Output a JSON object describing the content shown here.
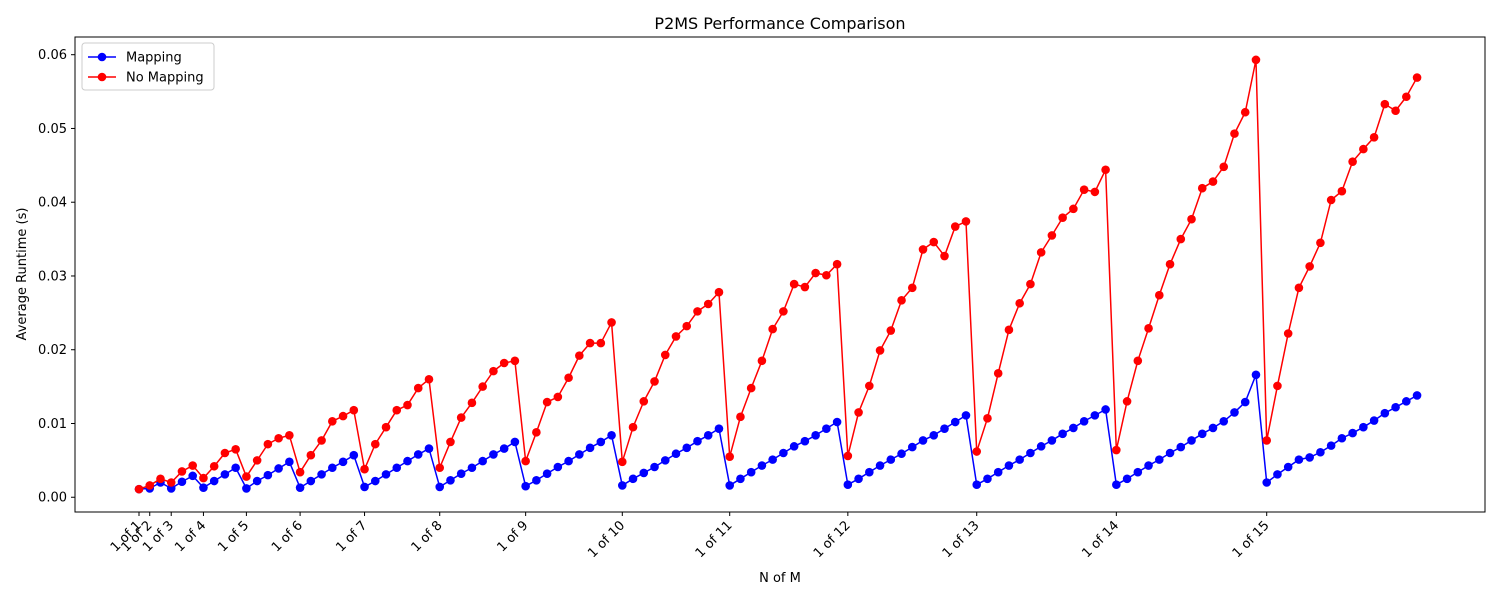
{
  "chart_data": {
    "type": "line",
    "title": "P2MS Performance Comparison",
    "xlabel": "N of M",
    "ylabel": "Average Runtime (s)",
    "ylim": [
      -0.002,
      0.0624
    ],
    "yticks": [
      0.0,
      0.01,
      0.02,
      0.03,
      0.04,
      0.05,
      0.06
    ],
    "ytick_labels": [
      "0.00",
      "0.01",
      "0.02",
      "0.03",
      "0.04",
      "0.05",
      "0.06"
    ],
    "xtick_labels": [
      "1 of 1",
      "1 of 2",
      "1 of 3",
      "1 of 4",
      "1 of 5",
      "1 of 6",
      "1 of 7",
      "1 of 8",
      "1 of 9",
      "1 of 10",
      "1 of 11",
      "1 of 12",
      "1 of 13",
      "1 of 14",
      "1 of 15"
    ],
    "grid": false,
    "legend_position": "top-left",
    "series": [
      {
        "name": "Mapping",
        "color": "#0000ff",
        "values": [
          0.0011,
          0.0012,
          0.002,
          0.0012,
          0.0021,
          0.0029,
          0.0013,
          0.0022,
          0.0031,
          0.004,
          0.0012,
          0.0022,
          0.003,
          0.0039,
          0.0048,
          0.0013,
          0.0022,
          0.0031,
          0.004,
          0.0048,
          0.0057,
          0.0014,
          0.0022,
          0.0031,
          0.004,
          0.0049,
          0.0058,
          0.0066,
          0.0014,
          0.0023,
          0.0032,
          0.004,
          0.0049,
          0.0058,
          0.0066,
          0.0075,
          0.0015,
          0.0023,
          0.0032,
          0.0041,
          0.0049,
          0.0058,
          0.0067,
          0.0075,
          0.0084,
          0.0016,
          0.0025,
          0.0033,
          0.0041,
          0.005,
          0.0059,
          0.0067,
          0.0076,
          0.0084,
          0.0093,
          0.0016,
          0.0025,
          0.0034,
          0.0043,
          0.0051,
          0.006,
          0.0069,
          0.0076,
          0.0084,
          0.0093,
          0.0102,
          0.0017,
          0.0025,
          0.0034,
          0.0043,
          0.0051,
          0.0059,
          0.0068,
          0.0077,
          0.0084,
          0.0093,
          0.0102,
          0.0111,
          0.0017,
          0.0025,
          0.0034,
          0.0043,
          0.0051,
          0.006,
          0.0069,
          0.0077,
          0.0086,
          0.0094,
          0.0103,
          0.0111,
          0.0119,
          0.0017,
          0.0025,
          0.0034,
          0.0043,
          0.0051,
          0.006,
          0.0068,
          0.0077,
          0.0086,
          0.0094,
          0.0103,
          0.0115,
          0.0129,
          0.0166,
          0.002,
          0.0031,
          0.0041,
          0.0051,
          0.0054,
          0.0061,
          0.007,
          0.008,
          0.0087,
          0.0095,
          0.0104,
          0.0114,
          0.0122,
          0.013,
          0.0138
        ]
      },
      {
        "name": "No Mapping",
        "color": "#ff0000",
        "values": [
          0.0011,
          0.0016,
          0.0025,
          0.002,
          0.0035,
          0.0043,
          0.0026,
          0.0042,
          0.006,
          0.0065,
          0.0028,
          0.005,
          0.0072,
          0.008,
          0.0084,
          0.0034,
          0.0057,
          0.0077,
          0.0103,
          0.011,
          0.0118,
          0.0038,
          0.0072,
          0.0095,
          0.0118,
          0.0125,
          0.0148,
          0.016,
          0.004,
          0.0075,
          0.0108,
          0.0128,
          0.015,
          0.0171,
          0.0182,
          0.0185,
          0.0049,
          0.0088,
          0.0129,
          0.0136,
          0.0162,
          0.0192,
          0.0209,
          0.0209,
          0.0237,
          0.0048,
          0.0095,
          0.013,
          0.0157,
          0.0193,
          0.0218,
          0.0232,
          0.0252,
          0.0262,
          0.0278,
          0.0055,
          0.0109,
          0.0148,
          0.0185,
          0.0228,
          0.0252,
          0.0289,
          0.0285,
          0.0304,
          0.0301,
          0.0316,
          0.0056,
          0.0115,
          0.0151,
          0.0199,
          0.0226,
          0.0267,
          0.0284,
          0.0336,
          0.0346,
          0.0327,
          0.0367,
          0.0374,
          0.0062,
          0.0107,
          0.0168,
          0.0227,
          0.0263,
          0.0289,
          0.0332,
          0.0355,
          0.0379,
          0.0391,
          0.0417,
          0.0414,
          0.0444,
          0.0064,
          0.013,
          0.0185,
          0.0229,
          0.0274,
          0.0316,
          0.035,
          0.0377,
          0.0419,
          0.0428,
          0.0448,
          0.0493,
          0.0522,
          0.0593,
          0.0077,
          0.0151,
          0.0222,
          0.0284,
          0.0313,
          0.0345,
          0.0403,
          0.0415,
          0.0455,
          0.0472,
          0.0488,
          0.0533,
          0.0524,
          0.0543,
          0.0569
        ]
      }
    ]
  }
}
